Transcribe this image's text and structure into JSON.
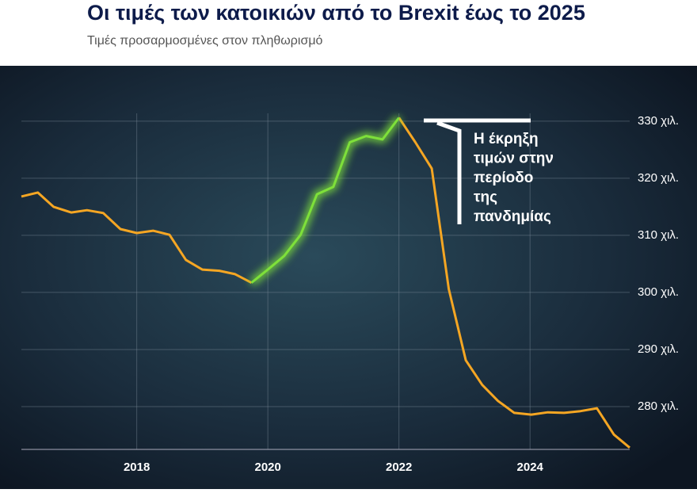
{
  "chart_data": {
    "type": "line",
    "title": "Οι τιμές των κατοικιών από το Brexit έως το 2025",
    "subtitle": "Τιμές προσαρμοσμένες στον πληθωρισμό",
    "annotation": [
      "Η έκρηξη",
      "τιμών στην",
      "περίοδο",
      "της",
      "πανδημίας"
    ],
    "x": [
      2016.24,
      2016.49,
      2016.73,
      2017.0,
      2017.24,
      2017.49,
      2017.75,
      2018.0,
      2018.25,
      2018.5,
      2018.75,
      2019.0,
      2019.26,
      2019.5,
      2019.75,
      2020.0,
      2020.25,
      2020.5,
      2020.75,
      2021.0,
      2021.25,
      2021.5,
      2021.75,
      2022.0,
      2022.25,
      2022.5,
      2022.76,
      2023.02,
      2023.27,
      2023.51,
      2023.76,
      2024.02,
      2024.27,
      2024.52,
      2024.77,
      2025.02,
      2025.28,
      2025.52
    ],
    "series": [
      {
        "color": "#f5a623",
        "values": [
          316.8,
          317.5,
          315.0,
          314.0,
          314.4,
          313.9,
          311.1,
          310.4,
          310.8,
          310.1,
          305.7,
          304.0,
          303.8,
          303.2,
          301.7,
          null,
          null,
          null,
          null,
          null,
          null,
          null,
          null,
          330.6,
          326.3,
          321.7,
          300.6,
          288.1,
          283.8,
          281.0,
          278.9,
          278.6,
          279.0,
          278.9,
          279.2,
          279.7,
          275.1,
          272.8
        ]
      },
      {
        "color": "#7ee03a",
        "values": [
          null,
          null,
          null,
          null,
          null,
          null,
          null,
          null,
          null,
          null,
          null,
          null,
          null,
          null,
          301.7,
          304.0,
          306.4,
          310.1,
          317.2,
          318.5,
          326.3,
          327.4,
          326.8,
          330.6,
          null,
          null,
          null,
          null,
          null,
          null,
          null,
          null,
          null,
          null,
          null,
          null,
          null,
          null
        ]
      }
    ],
    "xlim": [
      2016.24,
      2025.52
    ],
    "xticks": [
      2018,
      2020,
      2022,
      2024
    ],
    "ylim": [
      272.5,
      339.7
    ],
    "yticks": [
      {
        "value": 280,
        "label": "280 χιλ."
      },
      {
        "value": 290,
        "label": "290 χιλ."
      },
      {
        "value": 300,
        "label": "300 χιλ."
      },
      {
        "value": 310,
        "label": "310 χιλ."
      },
      {
        "value": 320,
        "label": "320 χιλ."
      },
      {
        "value": 330,
        "label": "330 χιλ."
      }
    ],
    "grid": true
  }
}
